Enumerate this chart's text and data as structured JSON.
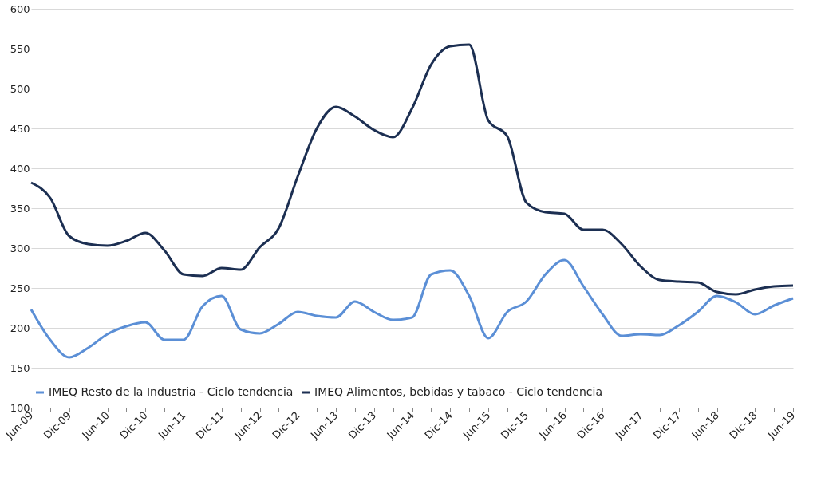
{
  "chart_data": {
    "type": "line",
    "categories": [
      "Jun-09",
      null,
      "Dic-09",
      null,
      "Jun-10",
      null,
      "Dic-10",
      null,
      "Jun-11",
      null,
      "Dic-11",
      null,
      "Jun-12",
      null,
      "Dic-12",
      null,
      "Jun-13",
      null,
      "Dic-13",
      null,
      "Jun-14",
      null,
      "Dic-14",
      null,
      "Jun-15",
      null,
      "Dic-15",
      null,
      "Jun-16",
      null,
      "Dic-16",
      null,
      "Jun-17",
      null,
      "Dic-17",
      null,
      "Jun-18",
      null,
      "Dic-18",
      null,
      "Jun-19"
    ],
    "series": [
      {
        "name": "IMEQ Resto de la Industria - Ciclo tendencia",
        "color": "#5b8fd6",
        "values": [
          223,
          185,
          163,
          175,
          192,
          202,
          207,
          185,
          185,
          227,
          240,
          198,
          193,
          205,
          220,
          215,
          213,
          233,
          220,
          210,
          213,
          267,
          272,
          240,
          187,
          220,
          233,
          267,
          285,
          252,
          217,
          190,
          192,
          191,
          203,
          220,
          240,
          232,
          217,
          228,
          237
        ]
      },
      {
        "name": "IMEQ Alimentos, bebidas y tabaco - Ciclo tendencia",
        "color": "#1c2f52",
        "values": [
          382,
          363,
          315,
          305,
          303,
          309,
          319,
          297,
          267,
          265,
          275,
          273,
          301,
          325,
          390,
          450,
          477,
          465,
          448,
          439,
          475,
          530,
          553,
          555,
          460,
          440,
          357,
          345,
          343,
          323,
          323,
          305,
          277,
          260,
          258,
          257,
          245,
          242,
          248,
          252,
          253
        ]
      }
    ],
    "ylim": [
      100,
      600
    ],
    "yticks": [
      100,
      150,
      200,
      250,
      300,
      350,
      400,
      450,
      500,
      550,
      600
    ],
    "grid": "y",
    "legend": "bottom",
    "marker": "none",
    "line_style": "solid"
  }
}
